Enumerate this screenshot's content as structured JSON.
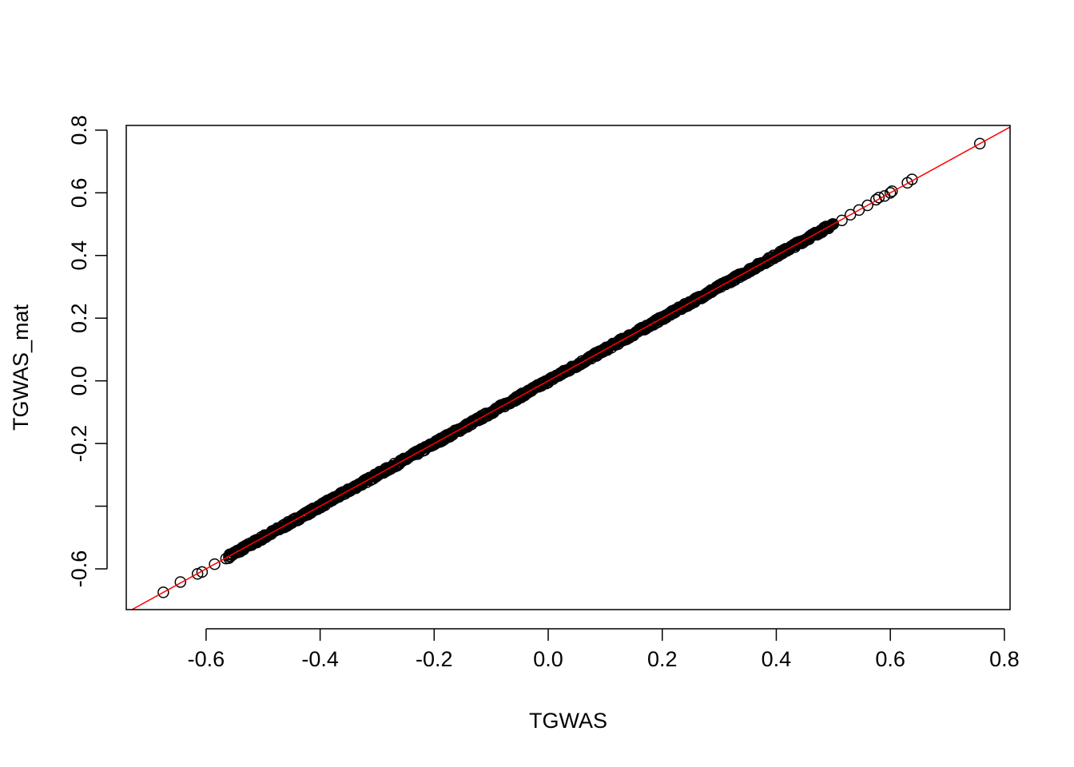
{
  "chart_data": {
    "type": "scatter",
    "title": "",
    "xlabel": "TGWAS",
    "ylabel": "TGWAS_mat",
    "xlim": [
      -0.74,
      0.81
    ],
    "ylim": [
      -0.73,
      0.815
    ],
    "x_ticks": [
      -0.6,
      -0.4,
      -0.2,
      0.0,
      0.2,
      0.4,
      0.6,
      0.8
    ],
    "x_tick_labels": [
      "-0.6",
      "-0.4",
      "-0.2",
      "0.0",
      "0.2",
      "0.4",
      "0.6",
      "0.8"
    ],
    "y_ticks": [
      -0.6,
      -0.4,
      -0.2,
      0.0,
      0.2,
      0.4,
      0.6,
      0.8
    ],
    "y_tick_labels": [
      "-0.6",
      "",
      "-0.2",
      "0.0",
      "0.2",
      "0.4",
      "0.6",
      "0.8"
    ],
    "grid": false,
    "legend": "none",
    "reference_line": {
      "slope": 1,
      "intercept": 0,
      "color": "#ff0000"
    },
    "point_color": "#000000",
    "point_style": "open-circle",
    "dense_band": {
      "x_from": -0.56,
      "x_to": 0.5,
      "approx_count": 900
    },
    "points": [
      {
        "x": -0.675,
        "y": -0.675
      },
      {
        "x": -0.645,
        "y": -0.642
      },
      {
        "x": -0.615,
        "y": -0.616
      },
      {
        "x": -0.607,
        "y": -0.61
      },
      {
        "x": -0.585,
        "y": -0.585
      },
      {
        "x": -0.565,
        "y": -0.567
      },
      {
        "x": -0.56,
        "y": -0.56
      },
      {
        "x": 0.515,
        "y": 0.512
      },
      {
        "x": 0.53,
        "y": 0.53
      },
      {
        "x": 0.545,
        "y": 0.545
      },
      {
        "x": 0.56,
        "y": 0.56
      },
      {
        "x": 0.575,
        "y": 0.578
      },
      {
        "x": 0.58,
        "y": 0.585
      },
      {
        "x": 0.59,
        "y": 0.59
      },
      {
        "x": 0.6,
        "y": 0.6
      },
      {
        "x": 0.603,
        "y": 0.605
      },
      {
        "x": 0.63,
        "y": 0.632
      },
      {
        "x": 0.638,
        "y": 0.643
      },
      {
        "x": 0.757,
        "y": 0.757
      }
    ]
  }
}
